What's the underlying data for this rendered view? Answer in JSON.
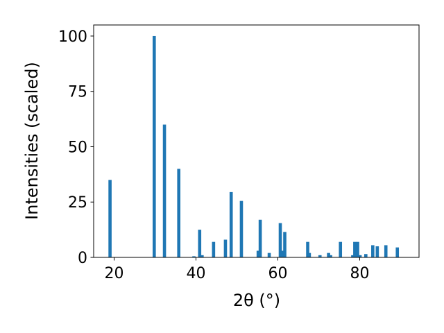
{
  "chart_data": {
    "type": "bar",
    "xlabel": "2θ (°)",
    "ylabel": "Intensities (scaled)",
    "xlim": [
      15.0,
      94.5
    ],
    "ylim": [
      0,
      105
    ],
    "xticks": [
      20,
      40,
      60,
      80
    ],
    "yticks": [
      0,
      25,
      50,
      75,
      100
    ],
    "grid": false,
    "bar_color": "#1f77b4",
    "x": [
      19.0,
      29.8,
      32.3,
      35.8,
      39.5,
      40.9,
      41.5,
      44.3,
      47.2,
      48.6,
      51.1,
      55.2,
      55.7,
      57.9,
      60.6,
      61.1,
      61.7,
      67.3,
      67.7,
      70.3,
      72.4,
      72.9,
      75.3,
      78.3,
      78.8,
      79.5,
      80.1,
      81.5,
      83.2,
      84.3,
      86.4,
      89.2
    ],
    "values": [
      35,
      100,
      60,
      40,
      0.5,
      12.5,
      1,
      7,
      8,
      29.5,
      25.5,
      3,
      17,
      2,
      15.5,
      3,
      11.5,
      7,
      2,
      1,
      2,
      1,
      7,
      1,
      7,
      7,
      1,
      1.5,
      5.5,
      5,
      5.5,
      4.5
    ]
  }
}
